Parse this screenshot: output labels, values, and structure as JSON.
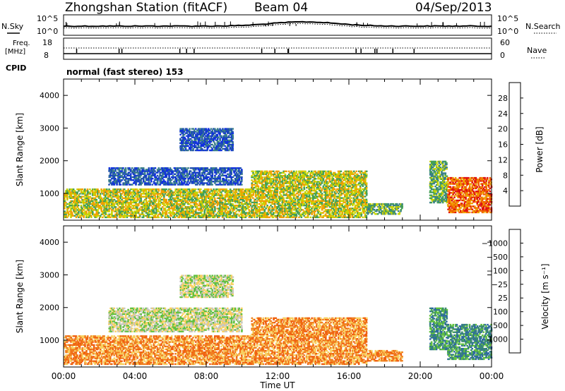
{
  "header": {
    "station": "Zhongshan Station (fitACF)",
    "beam": "Beam 04",
    "date": "04/Sep/2013",
    "mode": "normal (fast stereo) 153"
  },
  "noise_panel": {
    "left_label": "N.Sky",
    "right_label": "N.Search",
    "left_ticks": [
      "10^5",
      "10^0"
    ],
    "right_ticks": [
      "10^5",
      "10^0"
    ]
  },
  "freq_panel": {
    "left_label_1": "Freq.",
    "left_label_2": "[MHz]",
    "right_label": "Nave",
    "left_ticks": [
      "18",
      "8"
    ],
    "right_ticks": [
      "60",
      "0"
    ]
  },
  "cpid_label": "CPID",
  "chart_data": [
    {
      "type": "heatmap",
      "name": "power",
      "ylabel": "Slant Range [km]",
      "yticks": [
        1000,
        2000,
        3000,
        4000
      ],
      "xlabel": "",
      "colorbar": {
        "label": "Power [dB]",
        "ticks": [
          "4",
          "8",
          "12",
          "16",
          "20",
          "24",
          "28"
        ],
        "colors": [
          "#1030e0",
          "#2050b0",
          "#3a7f8a",
          "#44a055",
          "#c8d400",
          "#f0a000",
          "#f06000",
          "#e01010"
        ]
      },
      "regions": [
        {
          "t0": 0.0,
          "t1": 10.5,
          "r0": 250,
          "r1": 1150,
          "level": 4
        },
        {
          "t0": 2.5,
          "t1": 10.0,
          "r0": 1250,
          "r1": 1800,
          "level": 1
        },
        {
          "t0": 6.5,
          "t1": 9.5,
          "r0": 2300,
          "r1": 3000,
          "level": 1
        },
        {
          "t0": 10.5,
          "t1": 17.0,
          "r0": 250,
          "r1": 1700,
          "level": 4
        },
        {
          "t0": 17.0,
          "t1": 19.0,
          "r0": 350,
          "r1": 700,
          "level": 3
        },
        {
          "t0": 20.5,
          "t1": 21.5,
          "r0": 700,
          "r1": 2000,
          "level": 3
        },
        {
          "t0": 21.5,
          "t1": 24.0,
          "r0": 400,
          "r1": 1500,
          "level": 6
        }
      ]
    },
    {
      "type": "heatmap",
      "name": "velocity",
      "ylabel": "Slant Range [km]",
      "yticks": [
        1000,
        2000,
        3000,
        4000
      ],
      "xlabel": "Time UT",
      "xticks": [
        "00:00",
        "04:00",
        "08:00",
        "12:00",
        "16:00",
        "20:00",
        "00:00"
      ],
      "colorbar": {
        "label": "Velocity [m s⁻¹]",
        "ticks": [
          "1000",
          "500",
          "100",
          "25",
          "−25",
          "−100",
          "−500",
          "−1000"
        ],
        "colors": [
          "#1030c0",
          "#2e6aa0",
          "#3a8a70",
          "#60c040",
          "#c8c8c0",
          "#f8d060",
          "#f08020",
          "#f06010",
          "#e01010"
        ]
      },
      "regions": [
        {
          "t0": 0.0,
          "t1": 10.5,
          "r0": 250,
          "r1": 1150,
          "level": 6
        },
        {
          "t0": 2.5,
          "t1": 10.0,
          "r0": 1250,
          "r1": 2000,
          "level": 4
        },
        {
          "t0": 6.5,
          "t1": 9.5,
          "r0": 2300,
          "r1": 3000,
          "level": 4
        },
        {
          "t0": 10.5,
          "t1": 17.0,
          "r0": 250,
          "r1": 1700,
          "level": 6
        },
        {
          "t0": 17.0,
          "t1": 19.0,
          "r0": 350,
          "r1": 700,
          "level": 6
        },
        {
          "t0": 20.5,
          "t1": 21.5,
          "r0": 700,
          "r1": 2000,
          "level": 2
        },
        {
          "t0": 21.5,
          "t1": 24.0,
          "r0": 400,
          "r1": 1500,
          "level": 2
        }
      ]
    }
  ]
}
